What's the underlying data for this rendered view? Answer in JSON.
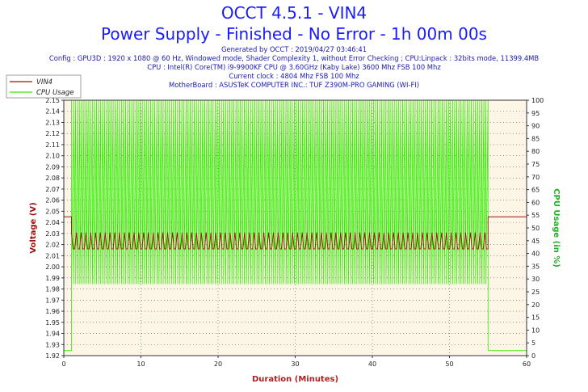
{
  "header": {
    "title": "OCCT 4.5.1 - VIN4",
    "subtitle": "Power Supply - Finished - No Error - 1h 00m 00s",
    "info_lines": [
      "Generated by OCCT : 2019/04/27 03:46:41",
      "Config : GPU3D : 1920 x 1080 @ 60 Hz, Windowed mode, Shader Complexity 1, without Error Checking ; CPU:Linpack : 32bits mode, 11399.4MB",
      "CPU : Intel(R) Core(TM) i9-9900KF CPU @ 3.60GHz (Kaby Lake) 3600 Mhz FSB 100 Mhz",
      "Current clock : 4804 Mhz FSB 100 Mhz",
      "MotherBoard : ASUSTeK COMPUTER INC.: TUF Z390M-PRO GAMING (WI-FI)"
    ]
  },
  "colors": {
    "voltage": "#a01010",
    "cpu": "#33ee00",
    "plot_bg": "#fdf6e6",
    "title": "#1a1aff"
  },
  "chart_data": {
    "type": "line",
    "xlabel": "Duration (Minutes)",
    "ylabel": "Voltage (V)",
    "y2label": "CPU Usage (in %)",
    "xlim": [
      0,
      60
    ],
    "ylim": [
      1.92,
      2.15
    ],
    "y2lim": [
      0,
      100
    ],
    "x_ticks": [
      "0",
      "10",
      "20",
      "30",
      "40",
      "50",
      "60"
    ],
    "y_ticks": [
      "1.92",
      "1.93",
      "1.94",
      "1.95",
      "1.96",
      "1.97",
      "1.98",
      "1.99",
      "2.00",
      "2.01",
      "2.02",
      "2.03",
      "2.04",
      "2.05",
      "2.06",
      "2.07",
      "2.08",
      "2.09",
      "2.10",
      "2.11",
      "2.12",
      "2.13",
      "2.14",
      "2.15"
    ],
    "y2_ticks": [
      "0",
      "5",
      "10",
      "15",
      "20",
      "25",
      "30",
      "35",
      "40",
      "45",
      "50",
      "55",
      "60",
      "65",
      "70",
      "75",
      "80",
      "85",
      "90",
      "95",
      "100"
    ],
    "grid": true,
    "legend_position": "top-left",
    "series": [
      {
        "name": "VIN4",
        "axis": "left",
        "segments": [
          {
            "x": [
              0,
              1
            ],
            "y": [
              2.045,
              2.045
            ]
          },
          {
            "x": [
              1,
              55
            ],
            "y_low": 2.016,
            "y_high": 2.031,
            "note": "oscillating"
          },
          {
            "x": [
              55,
              60
            ],
            "y": [
              2.045,
              2.045
            ]
          }
        ]
      },
      {
        "name": "CPU Usage",
        "axis": "right",
        "segments": [
          {
            "x": [
              0,
              1
            ],
            "y": [
              2,
              2
            ]
          },
          {
            "x": [
              1,
              55
            ],
            "y_low": 28,
            "y_high": 100,
            "note": "oscillating"
          },
          {
            "x": [
              55,
              60
            ],
            "y": [
              2,
              2
            ]
          }
        ]
      }
    ]
  }
}
